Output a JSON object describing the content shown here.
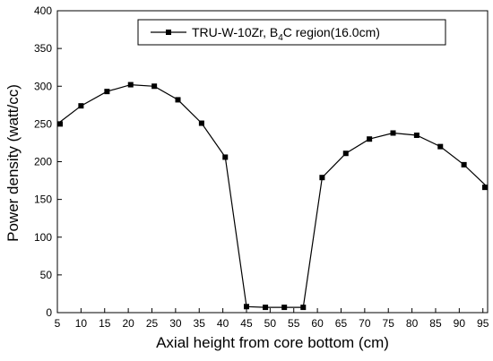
{
  "chart_data": {
    "type": "line",
    "xlabel": "Axial height from core bottom (cm)",
    "ylabel": "Power density (watt/cc)",
    "xlim": [
      5,
      96
    ],
    "ylim": [
      0,
      400
    ],
    "x_ticks": [
      5,
      10,
      15,
      20,
      25,
      30,
      35,
      40,
      45,
      50,
      55,
      60,
      65,
      70,
      75,
      80,
      85,
      90,
      95
    ],
    "y_ticks": [
      0,
      50,
      100,
      150,
      200,
      250,
      300,
      350,
      400
    ],
    "grid": false,
    "legend_position": "top-right",
    "marker": "square",
    "line_color": "#000000",
    "series": [
      {
        "name_main": "TRU-W-10Zr,  B",
        "name_sub": "4",
        "name_tail": "C region(16.0cm)",
        "x": [
          5.0,
          10.0,
          15.5,
          20.5,
          25.5,
          30.5,
          35.5,
          40.5,
          45.0,
          49.0,
          53.0,
          57.0,
          61.0,
          66.0,
          71.0,
          76.0,
          81.0,
          86.0,
          91.0,
          96.0
        ],
        "y": [
          250,
          274,
          293,
          302,
          300,
          282,
          251,
          206,
          8,
          7,
          7,
          7,
          179,
          211,
          230,
          238,
          235,
          220,
          196,
          166
        ]
      }
    ]
  }
}
